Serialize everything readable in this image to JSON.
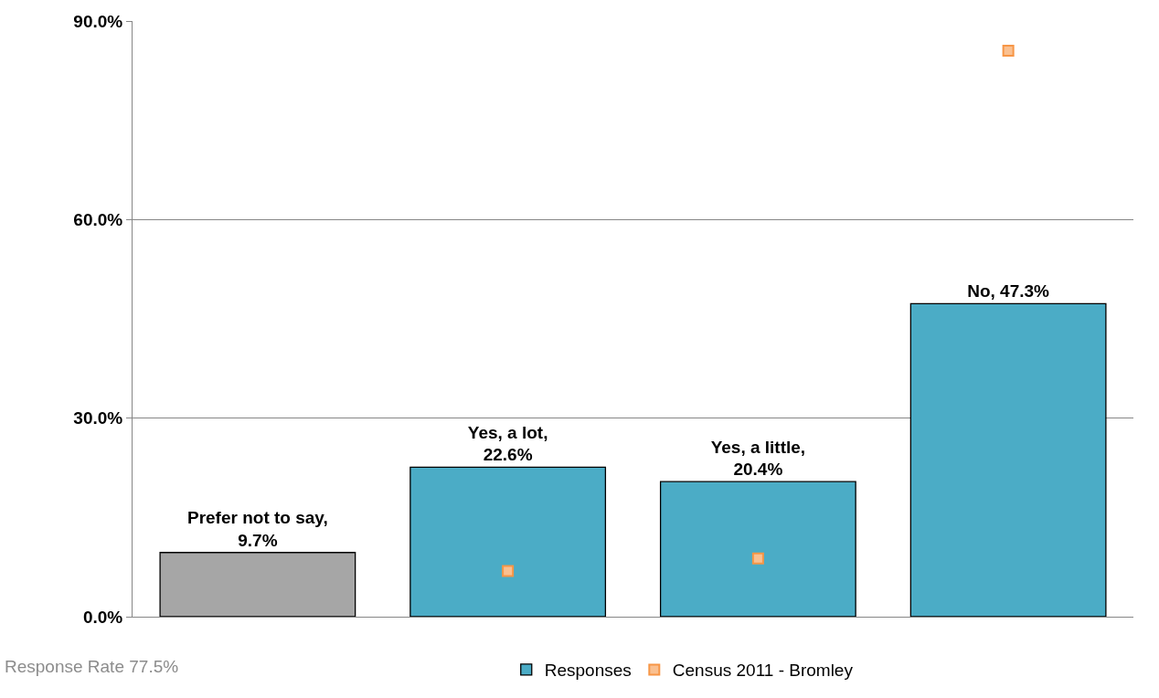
{
  "chart_data": {
    "type": "bar",
    "categories": [
      "Prefer not to say",
      "Yes, a lot",
      "Yes, a little",
      "No"
    ],
    "series": [
      {
        "name": "Responses",
        "color": "#4bacc6",
        "colors": [
          "#a6a6a6",
          "#4bacc6",
          "#4bacc6",
          "#4bacc6"
        ],
        "values": [
          9.7,
          22.6,
          20.4,
          47.3
        ],
        "value_labels": [
          ", 9.7%",
          ", 22.6%",
          ", 20.4%",
          ", 47.3%"
        ]
      },
      {
        "name": "Census 2011 - Bromley",
        "type": "scatter",
        "marker": "square",
        "color": "#f79646",
        "values": [
          null,
          6.9,
          8.8,
          85.5
        ]
      }
    ],
    "ylim": [
      0,
      90
    ],
    "yticks": [
      {
        "value": 0,
        "label": "0.0%"
      },
      {
        "value": 30,
        "label": "30.0%"
      },
      {
        "value": 60,
        "label": "60.0%"
      },
      {
        "value": 90,
        "label": "90.0%"
      }
    ],
    "grid": "y",
    "legend": "bottom",
    "tick_labels": "y",
    "annotations": [
      "Response Rate 77.5%"
    ]
  }
}
